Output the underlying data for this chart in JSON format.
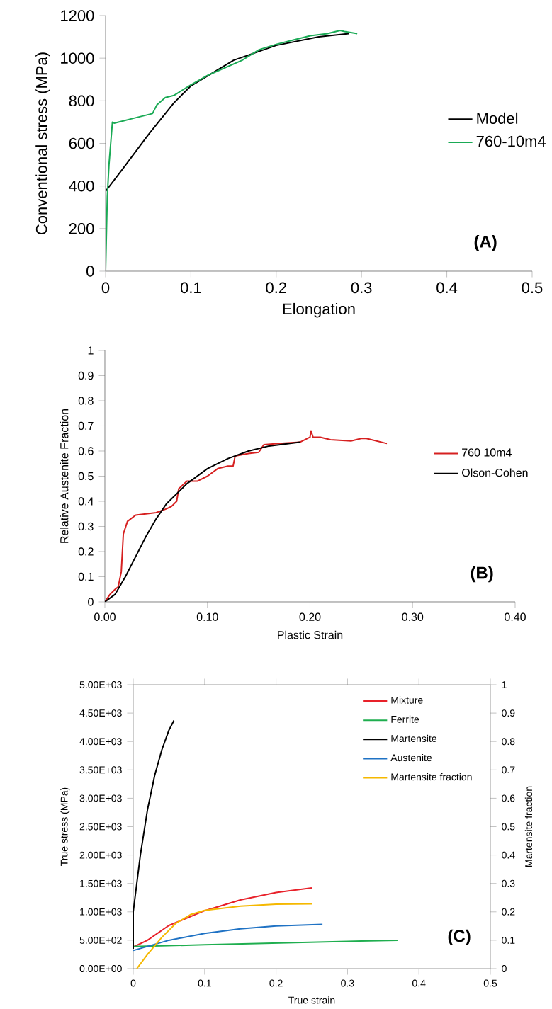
{
  "chart_data": [
    {
      "type": "line",
      "xlabel": "Elongation",
      "ylabel": "Conventional stress (MPa)",
      "annotations": [
        "(A)"
      ],
      "xlim": [
        0,
        0.5
      ],
      "ylim": [
        0,
        1200
      ],
      "xticks": [
        0,
        0.1,
        0.2,
        0.3,
        0.4,
        0.5
      ],
      "yticks": [
        0,
        200,
        400,
        600,
        800,
        1000,
        1200
      ],
      "legend": "right",
      "marker": "none",
      "grid": false,
      "series": [
        {
          "name": "Model",
          "color": "#000000",
          "x": [
            0,
            0.02,
            0.05,
            0.08,
            0.1,
            0.15,
            0.2,
            0.25,
            0.285
          ],
          "values": [
            375,
            480,
            640,
            790,
            870,
            990,
            1060,
            1100,
            1115
          ]
        },
        {
          "name": "760-10m4",
          "color": "#1aaa55",
          "x": [
            0,
            0.002,
            0.004,
            0.008,
            0.01,
            0.02,
            0.03,
            0.04,
            0.05,
            0.055,
            0.06,
            0.07,
            0.08,
            0.09,
            0.1,
            0.12,
            0.14,
            0.16,
            0.18,
            0.2,
            0.22,
            0.24,
            0.26,
            0.275,
            0.28,
            0.295
          ],
          "values": [
            0,
            350,
            500,
            700,
            695,
            705,
            715,
            725,
            735,
            740,
            780,
            815,
            825,
            850,
            875,
            920,
            955,
            990,
            1040,
            1065,
            1085,
            1105,
            1115,
            1130,
            1125,
            1115
          ]
        }
      ]
    },
    {
      "type": "line",
      "xlabel": "Plastic Strain",
      "ylabel": "Relative Austenite Fraction",
      "annotations": [
        "(B)"
      ],
      "xlim": [
        0,
        0.4
      ],
      "ylim": [
        0,
        1
      ],
      "xticks": [
        {
          "value": 0,
          "label": "0.00"
        },
        {
          "value": 0.1,
          "label": "0.10"
        },
        {
          "value": 0.2,
          "label": "0.20"
        },
        {
          "value": 0.3,
          "label": "0.30"
        },
        {
          "value": 0.4,
          "label": "0.40"
        }
      ],
      "yticks": [
        0,
        0.1,
        0.2,
        0.3,
        0.4,
        0.5,
        0.6,
        0.7,
        0.8,
        0.9,
        1
      ],
      "legend": "right",
      "marker": "none",
      "grid": false,
      "series": [
        {
          "name": "760 10m4",
          "color": "#d62020",
          "x": [
            0,
            0.005,
            0.01,
            0.013,
            0.016,
            0.018,
            0.022,
            0.03,
            0.04,
            0.05,
            0.06,
            0.065,
            0.07,
            0.072,
            0.08,
            0.09,
            0.1,
            0.11,
            0.12,
            0.125,
            0.127,
            0.14,
            0.15,
            0.155,
            0.17,
            0.19,
            0.2,
            0.201,
            0.203,
            0.21,
            0.22,
            0.24,
            0.25,
            0.255,
            0.265,
            0.275
          ],
          "values": [
            0,
            0.03,
            0.05,
            0.06,
            0.12,
            0.27,
            0.32,
            0.345,
            0.35,
            0.355,
            0.37,
            0.38,
            0.4,
            0.45,
            0.48,
            0.48,
            0.5,
            0.53,
            0.54,
            0.54,
            0.58,
            0.59,
            0.595,
            0.625,
            0.63,
            0.635,
            0.655,
            0.68,
            0.655,
            0.655,
            0.645,
            0.64,
            0.65,
            0.65,
            0.64,
            0.63
          ]
        },
        {
          "name": "Olson-Cohen",
          "color": "#000000",
          "x": [
            0,
            0.01,
            0.02,
            0.03,
            0.04,
            0.05,
            0.06,
            0.08,
            0.1,
            0.12,
            0.14,
            0.16,
            0.19
          ],
          "values": [
            0,
            0.03,
            0.1,
            0.18,
            0.26,
            0.33,
            0.39,
            0.47,
            0.53,
            0.57,
            0.6,
            0.62,
            0.635
          ]
        }
      ]
    },
    {
      "type": "line",
      "xlabel": "True strain",
      "ylabel": "True stress (MPa)",
      "y2label": "Martensite fraction",
      "annotations": [
        "(C)"
      ],
      "xlim": [
        0,
        0.5
      ],
      "ylim": [
        0,
        5000
      ],
      "y2lim": [
        0,
        1
      ],
      "xticks": [
        0,
        0.1,
        0.2,
        0.3,
        0.4,
        0.5
      ],
      "yticks": [
        {
          "value": 0,
          "label": "0.00E+00"
        },
        {
          "value": 500,
          "label": "5.00E+02"
        },
        {
          "value": 1000,
          "label": "1.00E+03"
        },
        {
          "value": 1500,
          "label": "1.50E+03"
        },
        {
          "value": 2000,
          "label": "2.00E+03"
        },
        {
          "value": 2500,
          "label": "2.50E+03"
        },
        {
          "value": 3000,
          "label": "3.00E+03"
        },
        {
          "value": 3500,
          "label": "3.50E+03"
        },
        {
          "value": 4000,
          "label": "4.00E+03"
        },
        {
          "value": 4500,
          "label": "4.50E+03"
        },
        {
          "value": 5000,
          "label": "5.00E+03"
        }
      ],
      "y2ticks": [
        0,
        0.1,
        0.2,
        0.3,
        0.4,
        0.5,
        0.6,
        0.7,
        0.8,
        0.9,
        1
      ],
      "legend": "top right",
      "marker": "none",
      "grid": false,
      "series": [
        {
          "name": "Mixture",
          "color": "#e8212a",
          "x": [
            0,
            0.02,
            0.05,
            0.1,
            0.15,
            0.2,
            0.25
          ],
          "values": [
            380,
            500,
            760,
            1020,
            1210,
            1340,
            1420
          ]
        },
        {
          "name": "Ferrite",
          "color": "#1fae4f",
          "x": [
            0,
            0.1,
            0.2,
            0.3,
            0.37
          ],
          "values": [
            390,
            420,
            450,
            480,
            500
          ]
        },
        {
          "name": "Martensite",
          "color": "#000000",
          "x": [
            0,
            0,
            0.01,
            0.02,
            0.03,
            0.04,
            0.05,
            0.057
          ],
          "values": [
            350,
            1000,
            2000,
            2800,
            3400,
            3850,
            4200,
            4370
          ]
        },
        {
          "name": "Austenite",
          "color": "#1f72c4",
          "x": [
            0,
            0.05,
            0.1,
            0.15,
            0.2,
            0.265
          ],
          "values": [
            320,
            500,
            620,
            700,
            750,
            780
          ]
        },
        {
          "name": "Martensite fraction",
          "color": "#f5b800",
          "axis": "y2",
          "x": [
            0.005,
            0.02,
            0.04,
            0.06,
            0.08,
            0.1,
            0.15,
            0.2,
            0.25
          ],
          "values": [
            0,
            0.05,
            0.11,
            0.16,
            0.19,
            0.205,
            0.22,
            0.227,
            0.228
          ]
        }
      ]
    }
  ]
}
